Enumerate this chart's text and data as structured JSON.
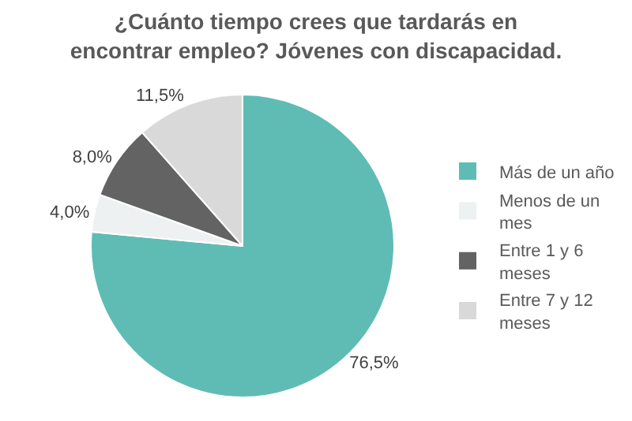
{
  "chart_data": {
    "type": "pie",
    "title": "¿Cuánto tiempo crees que tardarás en encontrar empleo? Jóvenes con discapacidad.",
    "categories": [
      "Más de un año",
      "Menos de un mes",
      "Entre 1 y 6 meses",
      "Entre 7 y 12 meses"
    ],
    "values": [
      76.5,
      4.0,
      8.0,
      11.5
    ],
    "value_labels": [
      "76,5%",
      "4,0%",
      "8,0%",
      "11,5%"
    ],
    "colors": [
      "#5fbcb4",
      "#eef1f1",
      "#636363",
      "#d9d9d9"
    ],
    "legend": "right"
  }
}
